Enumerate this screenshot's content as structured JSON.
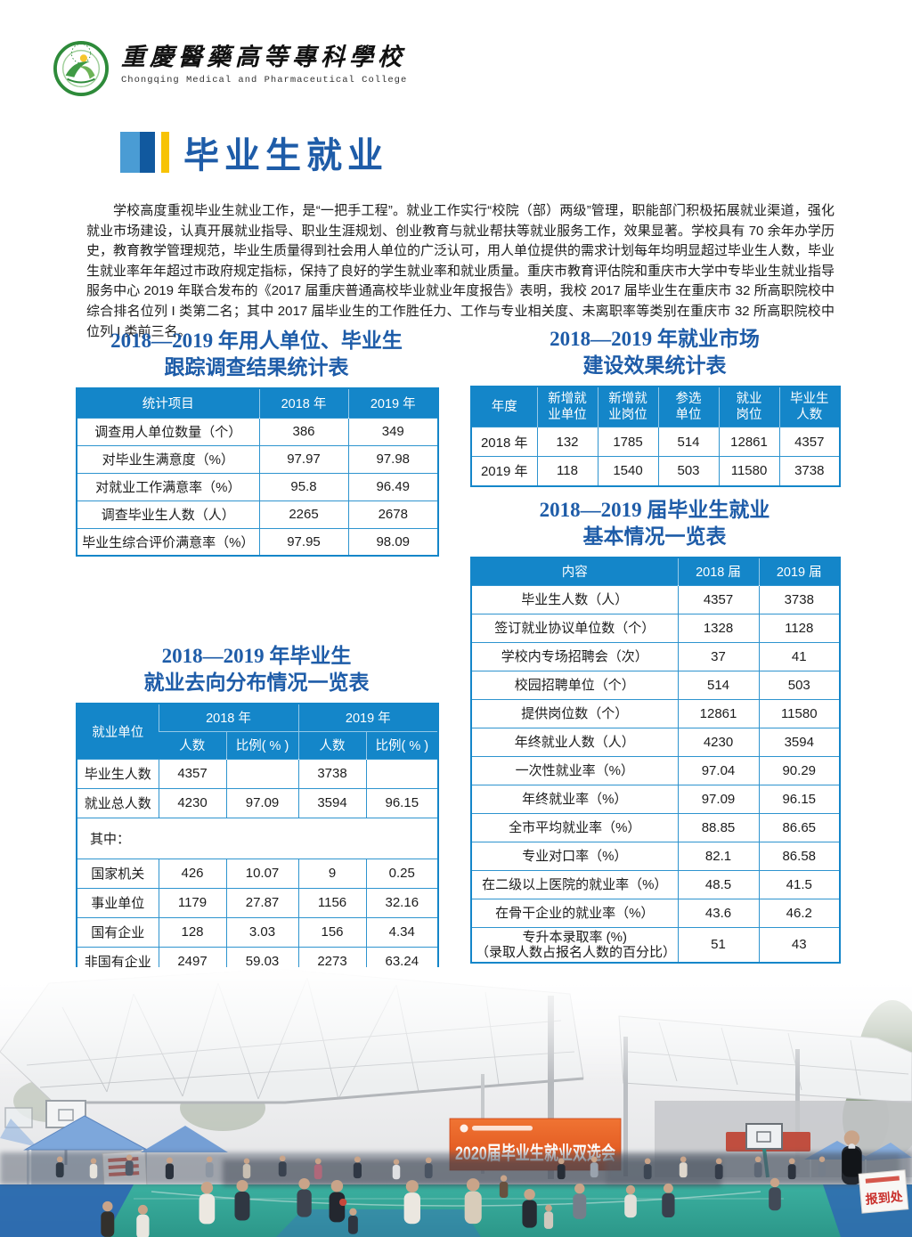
{
  "header": {
    "college_name_zh": "重慶醫藥高等專科學校",
    "college_name_en": "Chongqing Medical and Pharmaceutical College"
  },
  "section": {
    "title": "毕业生就业"
  },
  "intro_paragraph": "学校高度重视毕业生就业工作，是“一把手工程”。就业工作实行“校院（部）两级”管理，职能部门积极拓展就业渠道，强化就业市场建设，认真开展就业指导、职业生涯规划、创业教育与就业帮扶等就业服务工作，效果显著。学校具有 70 余年办学历史，教育教学管理规范，毕业生质量得到社会用人单位的广泛认可，用人单位提供的需求计划每年均明显超过毕业生人数，毕业生就业率年年超过市政府规定指标，保持了良好的学生就业率和就业质量。重庆市教育评估院和重庆市大学中专毕业生就业指导服务中心 2019 年联合发布的《2017 届重庆普通高校毕业就业年度报告》表明，我校 2017 届毕业生在重庆市 32 所高职院校中综合排名位列 I 类第二名；其中 2017 届毕业生的工作胜任力、工作与专业相关度、未离职率等类别在重庆市 32 所高职院校中位列 I 类前三名。",
  "survey_table": {
    "title_line1": "2018—2019 年用人单位、毕业生",
    "title_line2": "跟踪调查结果统计表",
    "headers": [
      "统计项目",
      "2018 年",
      "2019 年"
    ],
    "rows": [
      [
        "调查用人单位数量（个）",
        "386",
        "349"
      ],
      [
        "对毕业生满意度（%）",
        "97.97",
        "97.98"
      ],
      [
        "对就业工作满意率（%）",
        "95.8",
        "96.49"
      ],
      [
        "调查毕业生人数（人）",
        "2265",
        "2678"
      ],
      [
        "毕业生综合评价满意率（%）",
        "97.95",
        "98.09"
      ]
    ]
  },
  "market_table": {
    "title_line1": "2018—2019 年就业市场",
    "title_line2": "建设效果统计表",
    "headers": [
      "年度",
      "新增就\n业单位",
      "新增就\n业岗位",
      "参选\n单位",
      "就业\n岗位",
      "毕业生\n人数"
    ],
    "rows": [
      [
        "2018 年",
        "132",
        "1785",
        "514",
        "12861",
        "4357"
      ],
      [
        "2019 年",
        "118",
        "1540",
        "503",
        "11580",
        "3738"
      ]
    ]
  },
  "basic_table": {
    "title_line1": "2018—2019 届毕业生就业",
    "title_line2": "基本情况一览表",
    "headers": [
      "内容",
      "2018 届",
      "2019 届"
    ],
    "rows": [
      [
        "毕业生人数（人）",
        "4357",
        "3738"
      ],
      [
        "签订就业协议单位数（个）",
        "1328",
        "1128"
      ],
      [
        "学校内专场招聘会（次）",
        "37",
        "41"
      ],
      [
        "校园招聘单位（个）",
        "514",
        "503"
      ],
      [
        "提供岗位数（个）",
        "12861",
        "11580"
      ],
      [
        "年终就业人数（人）",
        "4230",
        "3594"
      ],
      [
        "一次性就业率（%）",
        "97.04",
        "90.29"
      ],
      [
        "年终就业率（%）",
        "97.09",
        "96.15"
      ],
      [
        "全市平均就业率（%）",
        "88.85",
        "86.65"
      ],
      [
        "专业对口率（%）",
        "82.1",
        "86.58"
      ],
      [
        "在二级以上医院的就业率（%）",
        "48.5",
        "41.5"
      ],
      [
        "在骨干企业的就业率（%）",
        "43.6",
        "46.2"
      ],
      [
        "专升本录取率 (%)\n（录取人数占报名人数的百分比）",
        "51",
        "43"
      ]
    ]
  },
  "distribution_table": {
    "title_line1": "2018—2019 年毕业生",
    "title_line2": "就业去向分布情况一览表",
    "corner_header": "就业单位",
    "year_headers": [
      "2018 年",
      "2019 年"
    ],
    "sub_headers": [
      "人数",
      "比例( % )",
      "人数",
      "比例( % )"
    ],
    "rows": [
      [
        "毕业生人数",
        "4357",
        "",
        "3738",
        ""
      ],
      [
        "就业总人数",
        "4230",
        "97.09",
        "3594",
        "96.15"
      ],
      [
        "其中："
      ],
      [
        "国家机关",
        "426",
        "10.07",
        "9",
        "0.25"
      ],
      [
        "事业单位",
        "1179",
        "27.87",
        "1156",
        "32.16"
      ],
      [
        "国有企业",
        "128",
        "3.03",
        "156",
        "4.34"
      ],
      [
        "非国有企业",
        "2497",
        "59.03",
        "2273",
        "63.24"
      ]
    ]
  },
  "photo": {
    "banner_text": "2020届毕业生就业双选会",
    "sign_text": "报到处"
  },
  "colors": {
    "table_header_blue": "#1486c9",
    "title_blue": "#1e5ca8",
    "accent_yellow": "#f7c306",
    "banner_orange": "#e4561e",
    "court_teal": "#34a596"
  }
}
